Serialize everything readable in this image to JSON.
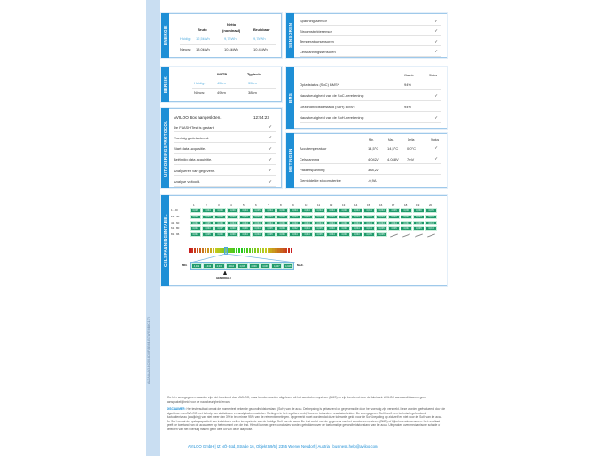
{
  "doc_id": "A82AAAA3-BC00-4D0F-8B6B-B7AFE6B3C175",
  "energie": {
    "title": "ENERGIE",
    "cols": [
      "Bruto",
      "Netto\n(nominaal)",
      "Bruikbaar"
    ],
    "rows": [
      {
        "label": "Huidig:",
        "values": [
          "12,5kWh",
          "9,7kWh",
          "9,7kWh"
        ]
      },
      {
        "label": "Nieuw:",
        "values": [
          "13,0kWh",
          "10,4kWh",
          "10,4kWh"
        ]
      }
    ]
  },
  "sensoren": {
    "title": "SENSOREN",
    "items": [
      "Spanningssensor",
      "Stroomsterktesensor",
      "Temperatuursensoren",
      "Celspanningssensoren"
    ],
    "check": "✓"
  },
  "bereik": {
    "title": "BEREIK",
    "cols": [
      "WLTP",
      "Typisch"
    ],
    "rows": [
      {
        "label": "Huidig:",
        "values": [
          "45km",
          "35km"
        ]
      },
      {
        "label": "Nieuw:",
        "values": [
          "49km",
          "38km"
        ]
      }
    ]
  },
  "bms": {
    "title": "BMS",
    "cols": [
      "Waarde",
      "Status"
    ],
    "rows": [
      {
        "label": "Opladstatus (SoC) BMS*:",
        "value": "94%",
        "status": ""
      },
      {
        "label": "Nauwkeurigheid van de SoC-berekening:",
        "value": "",
        "status": "✓"
      },
      {
        "label": "Gezondheidstoestand (SoH) BMS*:",
        "value": "94%",
        "status": ""
      },
      {
        "label": "Nauwkeurigheid van de SoH-berekening:",
        "value": "",
        "status": "✓"
      }
    ]
  },
  "protocol": {
    "title": "UITVOERINGSPROTOCOL",
    "header": "AVILOO Box aangesloten.",
    "time": "12:54:23",
    "items": [
      "De FLASH Test is gestart.",
      "Voertuig gedetecteerd.",
      "Start data acquisitie.",
      "Beëindig data acquisitie.",
      "Analyseren van gegevens.",
      "Analyse voltooid."
    ]
  },
  "metingen": {
    "title": "METINGEN",
    "cols": [
      "Min.",
      "Max.",
      "Delta",
      "Status"
    ],
    "rows": [
      {
        "label": "Accutemperatuur",
        "min": "14,5°C",
        "max": "14,5°C",
        "delta": "0,0°C",
        "status": "✓"
      },
      {
        "label": "Celspanning",
        "min": "4,042V",
        "max": "4,048V",
        "delta": "7mV",
        "status": "✓"
      },
      {
        "label": "Pakketspanning",
        "min": "388,2V",
        "max": "",
        "delta": "",
        "status": ""
      },
      {
        "label": "Gemiddelde stroomsterkte",
        "min": "-0,9A",
        "max": "",
        "delta": "",
        "status": ""
      }
    ]
  },
  "cells": {
    "title": "CELSPANNINGENTABEL",
    "col_headers": [
      "1",
      "2",
      "3",
      "4",
      "5",
      "6",
      "7",
      "8",
      "9",
      "10",
      "11",
      "12",
      "13",
      "14",
      "15",
      "16",
      "17",
      "18",
      "19",
      "20"
    ],
    "row_labels": [
      "1 - 20",
      "21 - 40",
      "41 - 60",
      "61 - 80",
      "81 - 96"
    ],
    "values": [
      "4,045",
      "4,044",
      "4,045",
      "4,046",
      "4,044",
      "4,045",
      "4,044",
      "4,045",
      "4,044",
      "4,044",
      "4,044",
      "4,044",
      "4,043",
      "4,044",
      "4,044",
      "4,044",
      "4,045",
      "4,046",
      "4,046",
      "4,045",
      "4,046",
      "4,044",
      "4,045",
      "4,046",
      "4,045",
      "4,043",
      "4,045",
      "4,043",
      "4,045",
      "4,044",
      "4,044",
      "4,044",
      "4,044",
      "4,044",
      "4,045",
      "4,044",
      "4,043",
      "4,045",
      "4,044",
      "4,045",
      "4,044",
      "4,045",
      "4,044",
      "4,044",
      "4,044",
      "4,044",
      "4,044",
      "4,045",
      "4,043",
      "4,044",
      "4,044",
      "4,044",
      "4,044",
      "4,044",
      "4,044",
      "4,044",
      "4,044",
      "4,044",
      "4,045",
      "4,044",
      "4,044",
      "4,043",
      "4,047",
      "4,046",
      "4,046",
      "4,044",
      "4,045",
      "4,044",
      "4,042",
      "4,044",
      "4,045",
      "4,043",
      "4,045",
      "4,044",
      "4,044",
      "4,045",
      "4,045",
      "4,044",
      "4,045",
      "4,044",
      "4,044",
      "4,045",
      "4,045",
      "4,046",
      "4,044",
      "4,043",
      "4,045",
      "4,045",
      "4,044",
      "4,044",
      "4,045",
      "4,044",
      "4,044",
      "4,043",
      "4,045",
      "4,045"
    ],
    "range_values": [
      "4,042",
      "4,043",
      "4,043",
      "4,044",
      "4,045",
      "4,046",
      "4,046",
      "4,047",
      "4,048"
    ],
    "min_label": "MIN.",
    "max_label": "MAX.",
    "avg_label": "GEMIDDELD"
  },
  "footnote": "*De hier weergegeven waarden zijn niet berekend door AVILOO, maar konden worden uitgelezen uit het accubeheersysteem (BMS) en zijn berekend door de fabrikant. AVILOO aanvaardt daarom geen aansprakelijkheid voor de nauwkeurigheid ervan.",
  "disclaimer_label": "DISCLAIMER:",
  "disclaimer": "Het testresultaat omvat de momenteel bekende gezondheidstoestand (SoH) van de accu. De bepaling is gebaseerd op gegevens die door het voertuig zijn verstrekt. Deze worden geëvalueerd door de algoritmen van AVILOO met behulp van statistische en analytische modellen. Metingen in het reguliere bedrijf kunnen tot andere resultaten leiden. De weergegeven SoH heeft een technisch gefundeerd fluctuatieniveau (afwijking) van niet meer dan 3% in ten minste 95% van de referentiemetingen. Opgemerkt moet worden dat deze tolerantie geldt voor de SoH-bepaling op zichzelf en niet voor de SoH van de accu. De SoH omvat de opslagcapaciteit van individuele cellen ten opzichte van de huidige SoH van de accu. De test werkt met de gegevens van het accubeheersysteem (BMS) of bijbehorende sensoren. Het resultaat geeft de toestand van de accu weer op het moment van de test. Hieruit kunnen geen conclusies worden getrokken over de toekomstige gezondheidstoestand van de accu. Uitspraken over mechanische schade of defecten van het voertuig maken geen deel uit van deze diagnose.",
  "address": "AVILOO GmbH | IZ NÖ-Süd, Straße 16, Objekt 69/5 | 2355 Wiener Neudorf | Austria | business.help@aviloo.com",
  "colors": {
    "accent": "#1e8fd6",
    "cell": "#1f9a6b",
    "strip": "#c9def2"
  }
}
